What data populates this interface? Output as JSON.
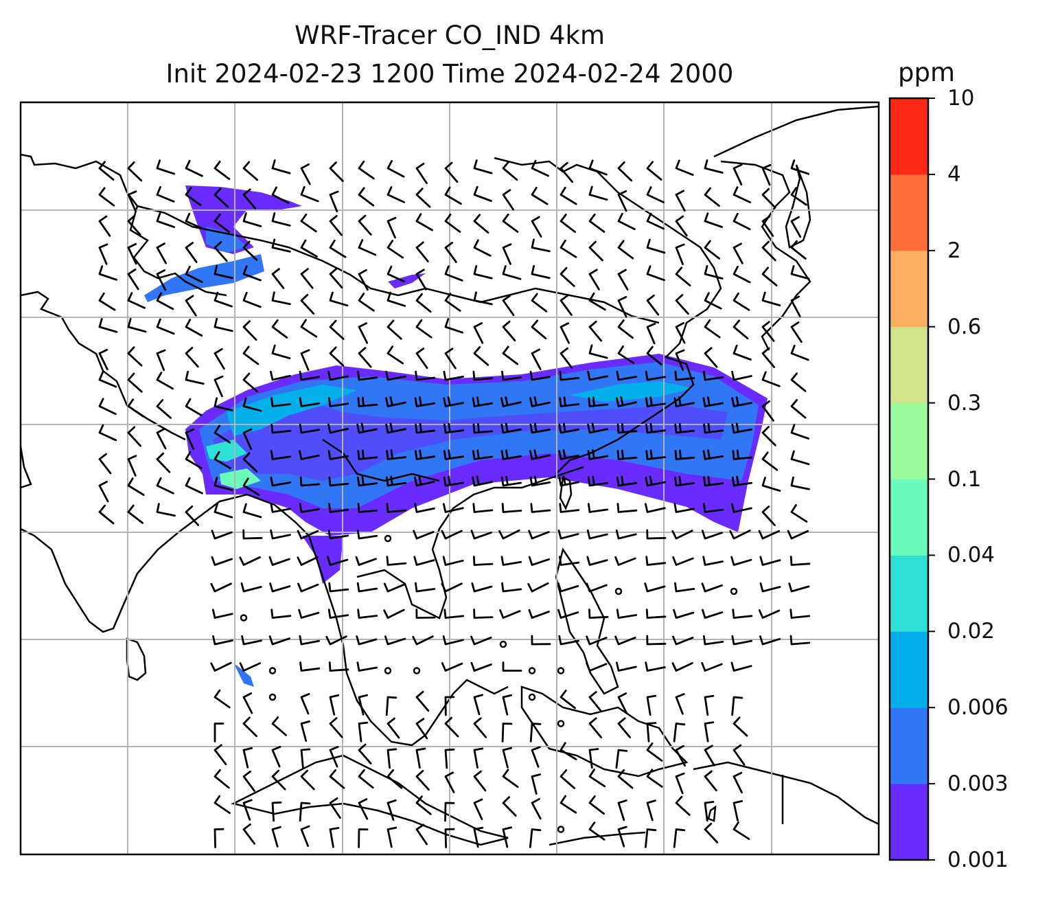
{
  "title": {
    "line1": "WRF-Tracer CO_IND 4km",
    "line2": "Init 2024-02-23 1200 Time 2024-02-24 2000"
  },
  "colorbar": {
    "units": "ppm",
    "levels": [
      "0.001",
      "0.003",
      "0.006",
      "0.02",
      "0.04",
      "0.1",
      "0.3",
      "0.6",
      "2",
      "4",
      "10"
    ],
    "colors": [
      "#6a2bff",
      "#3176f4",
      "#03b0ea",
      "#2ee0d6",
      "#6bfbbd",
      "#9bfa9b",
      "#d1e48a",
      "#feae61",
      "#fe6f3c",
      "#fe2818"
    ]
  },
  "map": {
    "gridlines": "on",
    "barb_color": "#000000"
  }
}
